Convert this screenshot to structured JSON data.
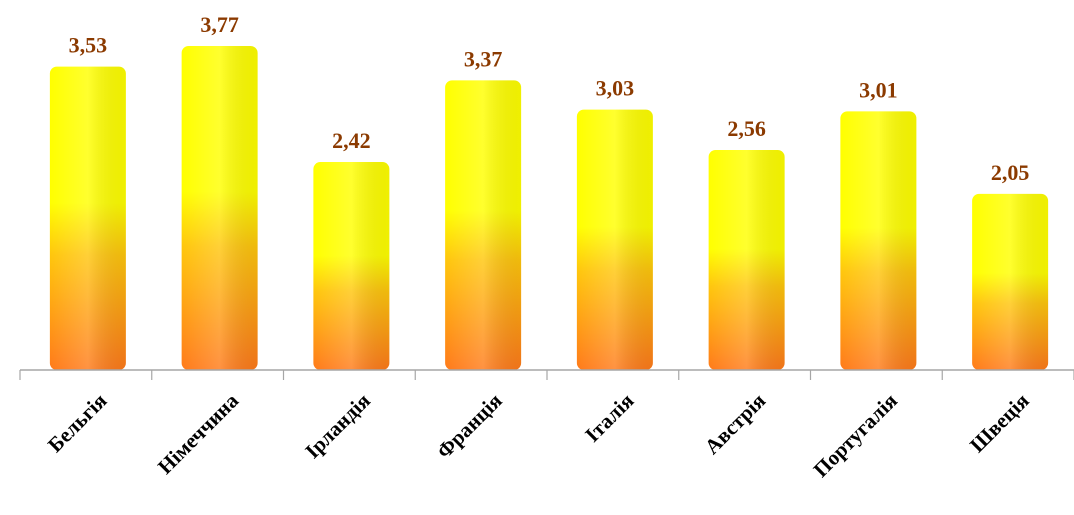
{
  "chart_data": {
    "type": "bar",
    "categories": [
      "Бельгія",
      "Німеччина",
      "Ірландія",
      "Франція",
      "Італія",
      "Австрія",
      "Португалія",
      "Швеція"
    ],
    "values": [
      3.53,
      3.77,
      2.42,
      3.37,
      3.03,
      2.56,
      3.01,
      2.05
    ],
    "data_labels": [
      "3,53",
      "3,77",
      "2,42",
      "3,37",
      "3,03",
      "2,56",
      "3,01",
      "2,05"
    ],
    "title": "",
    "xlabel": "",
    "ylabel": "",
    "ylim": [
      0,
      3.77
    ],
    "grid": false,
    "legend": "none"
  },
  "colors": {
    "bar_top": "#ffff00",
    "bar_mid": "#ffd800",
    "bar_bottom": "#ff7a1a",
    "value_label": "#8b3a00",
    "axis": "#a6a6a6"
  }
}
